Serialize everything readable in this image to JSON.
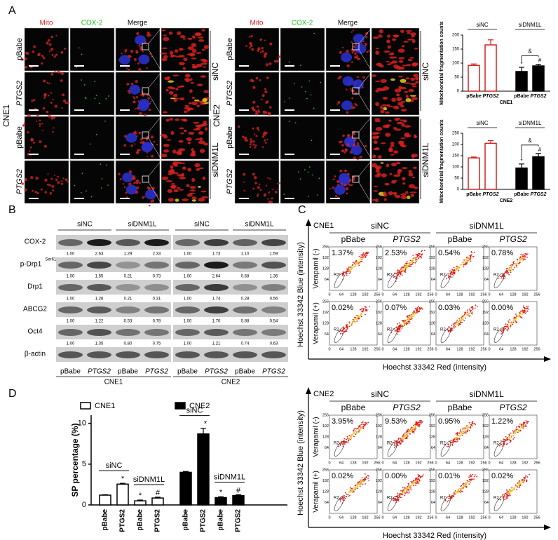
{
  "A": {
    "label": "A",
    "columns": [
      "Mito",
      "COX-2",
      "Merge"
    ],
    "panels": [
      {
        "cell_line": "CNE1",
        "rows": [
          "pBabe",
          "PTGS2",
          "pBabe",
          "PTGS2"
        ],
        "groups": [
          "siNC",
          "siDNM1L"
        ]
      },
      {
        "cell_line": "CNE2",
        "rows": [
          "pBabe",
          "PTGS2",
          "pBabe",
          "PTGS2"
        ],
        "groups": [
          "siNC",
          "siDNM1L"
        ]
      }
    ],
    "charts": [
      {
        "y_label": "Mitochondrial fragmentation counts",
        "x_label": "CNE1",
        "ylim": [
          0,
          200
        ],
        "yticks": [
          0,
          50,
          100,
          150,
          200
        ],
        "categories": [
          "pBabe",
          "PTGS2"
        ],
        "groups": [
          {
            "label": "siNC",
            "color": "#d62020",
            "fill": "#ffffff",
            "values": [
              92,
              165
            ],
            "errors": [
              5,
              18
            ]
          },
          {
            "label": "siDNM1L",
            "color": "#000000",
            "fill": "#000000",
            "values": [
              70,
              90
            ],
            "errors": [
              15,
              6
            ]
          }
        ],
        "annotations": [
          "*",
          "#",
          "&"
        ]
      },
      {
        "y_label": "Mitochondrial fragmentation counts",
        "x_label": "CNE2",
        "ylim": [
          0,
          250
        ],
        "yticks": [
          0,
          50,
          100,
          150,
          200,
          250
        ],
        "categories": [
          "pBabe",
          "PTGS2"
        ],
        "groups": [
          {
            "label": "siNC",
            "color": "#d62020",
            "fill": "#ffffff",
            "values": [
              140,
              205
            ],
            "errors": [
              4,
              12
            ]
          },
          {
            "label": "siDNM1L",
            "color": "#000000",
            "fill": "#000000",
            "values": [
              95,
              145
            ],
            "errors": [
              18,
              15
            ]
          }
        ],
        "annotations": [
          "*",
          "#",
          "&"
        ]
      }
    ]
  },
  "B": {
    "label": "B",
    "groups": [
      "siNC",
      "siDNM1L",
      "siNC",
      "siDNM1L"
    ],
    "lanes": [
      "pBabe",
      "PTGS2",
      "pBabe",
      "PTGS2",
      "pBabe",
      "PTGS2",
      "pBabe",
      "PTGS2"
    ],
    "cell_lines": [
      "CNE1",
      "CNE2"
    ],
    "rows": [
      {
        "label": "COX-2",
        "values": [
          "1.00",
          "2.63",
          "1.29",
          "2.33",
          "1.00",
          "1.73",
          "1.10",
          "1.59"
        ]
      },
      {
        "label": "p-Drp1",
        "superscript": "Ser616",
        "values": [
          "1.00",
          "1.55",
          "0.21",
          "0.73",
          "1.00",
          "2.64",
          "0.68",
          "1.36"
        ]
      },
      {
        "label": "Drp1",
        "values": [
          "1.00",
          "1.26",
          "0.21",
          "0.31",
          "1.00",
          "1.74",
          "0.28",
          "0.56"
        ]
      },
      {
        "label": "ABCG2",
        "values": [
          "1.00",
          "1.22",
          "0.53",
          "0.78",
          "1.00",
          "1.70",
          "0.88",
          "0.54"
        ]
      },
      {
        "label": "Oct4",
        "values": [
          "1.00",
          "1.35",
          "0.80",
          "0.75",
          "1.00",
          "1.21",
          "0.74",
          "0.63"
        ]
      },
      {
        "label": "β-actin"
      }
    ]
  },
  "C": {
    "label": "C",
    "y_label": "Hoechst 33342 Blue (intensity)",
    "x_label": "Hoechst 33342 Red (intensity)",
    "ticks": [
      "0",
      "64",
      "128",
      "192",
      "256"
    ],
    "gate": "R2",
    "blocks": [
      {
        "cell_line": "CNE1",
        "groups": [
          "siNC",
          "siDNM1L"
        ],
        "columns": [
          "pBabe",
          "PTGS2",
          "pBabe",
          "PTGS2"
        ],
        "rows": [
          {
            "label": "Verapamil (-)",
            "percents": [
              "1.37%",
              "2.53%",
              "0.54%",
              "0.78%"
            ]
          },
          {
            "label": "Verapamil (+)",
            "percents": [
              "0.02%",
              "0.07%",
              "0.03%",
              "0.00%"
            ]
          }
        ]
      },
      {
        "cell_line": "CNE2",
        "groups": [
          "siNC",
          "siDNM1L"
        ],
        "columns": [
          "pBabe",
          "PTGS2",
          "pBabe",
          "PTGS2"
        ],
        "rows": [
          {
            "label": "Verapamil (-)",
            "percents": [
              "3.95%",
              "9.53%",
              "0.95%",
              "1.22%"
            ]
          },
          {
            "label": "Verapamil (+)",
            "percents": [
              "0.02%",
              "0.00%",
              "0.01%",
              "0.02%"
            ]
          }
        ]
      }
    ]
  },
  "D": {
    "label": "D",
    "y_label": "SP percentage (%)",
    "ylim": [
      0,
      11
    ],
    "yticks": [
      0,
      5,
      10
    ],
    "categories": [
      "pBabe",
      "PTGS2",
      "pBabe",
      "PTGS2"
    ],
    "subgroups": [
      "siNC",
      "siDNM1L"
    ],
    "series": [
      {
        "name": "CNE1",
        "fill": "#ffffff",
        "values": [
          1.2,
          2.55,
          0.5,
          0.85
        ],
        "errors": [
          0.05,
          0.1,
          0.1,
          0.1
        ],
        "annotations": [
          "*",
          "*",
          "#"
        ]
      },
      {
        "name": "CNE2",
        "fill": "#000000",
        "values": [
          4.0,
          8.7,
          0.9,
          1.15
        ],
        "errors": [
          0.1,
          0.7,
          0.1,
          0.1
        ],
        "annotations": [
          "*",
          "*",
          "#"
        ]
      }
    ]
  }
}
